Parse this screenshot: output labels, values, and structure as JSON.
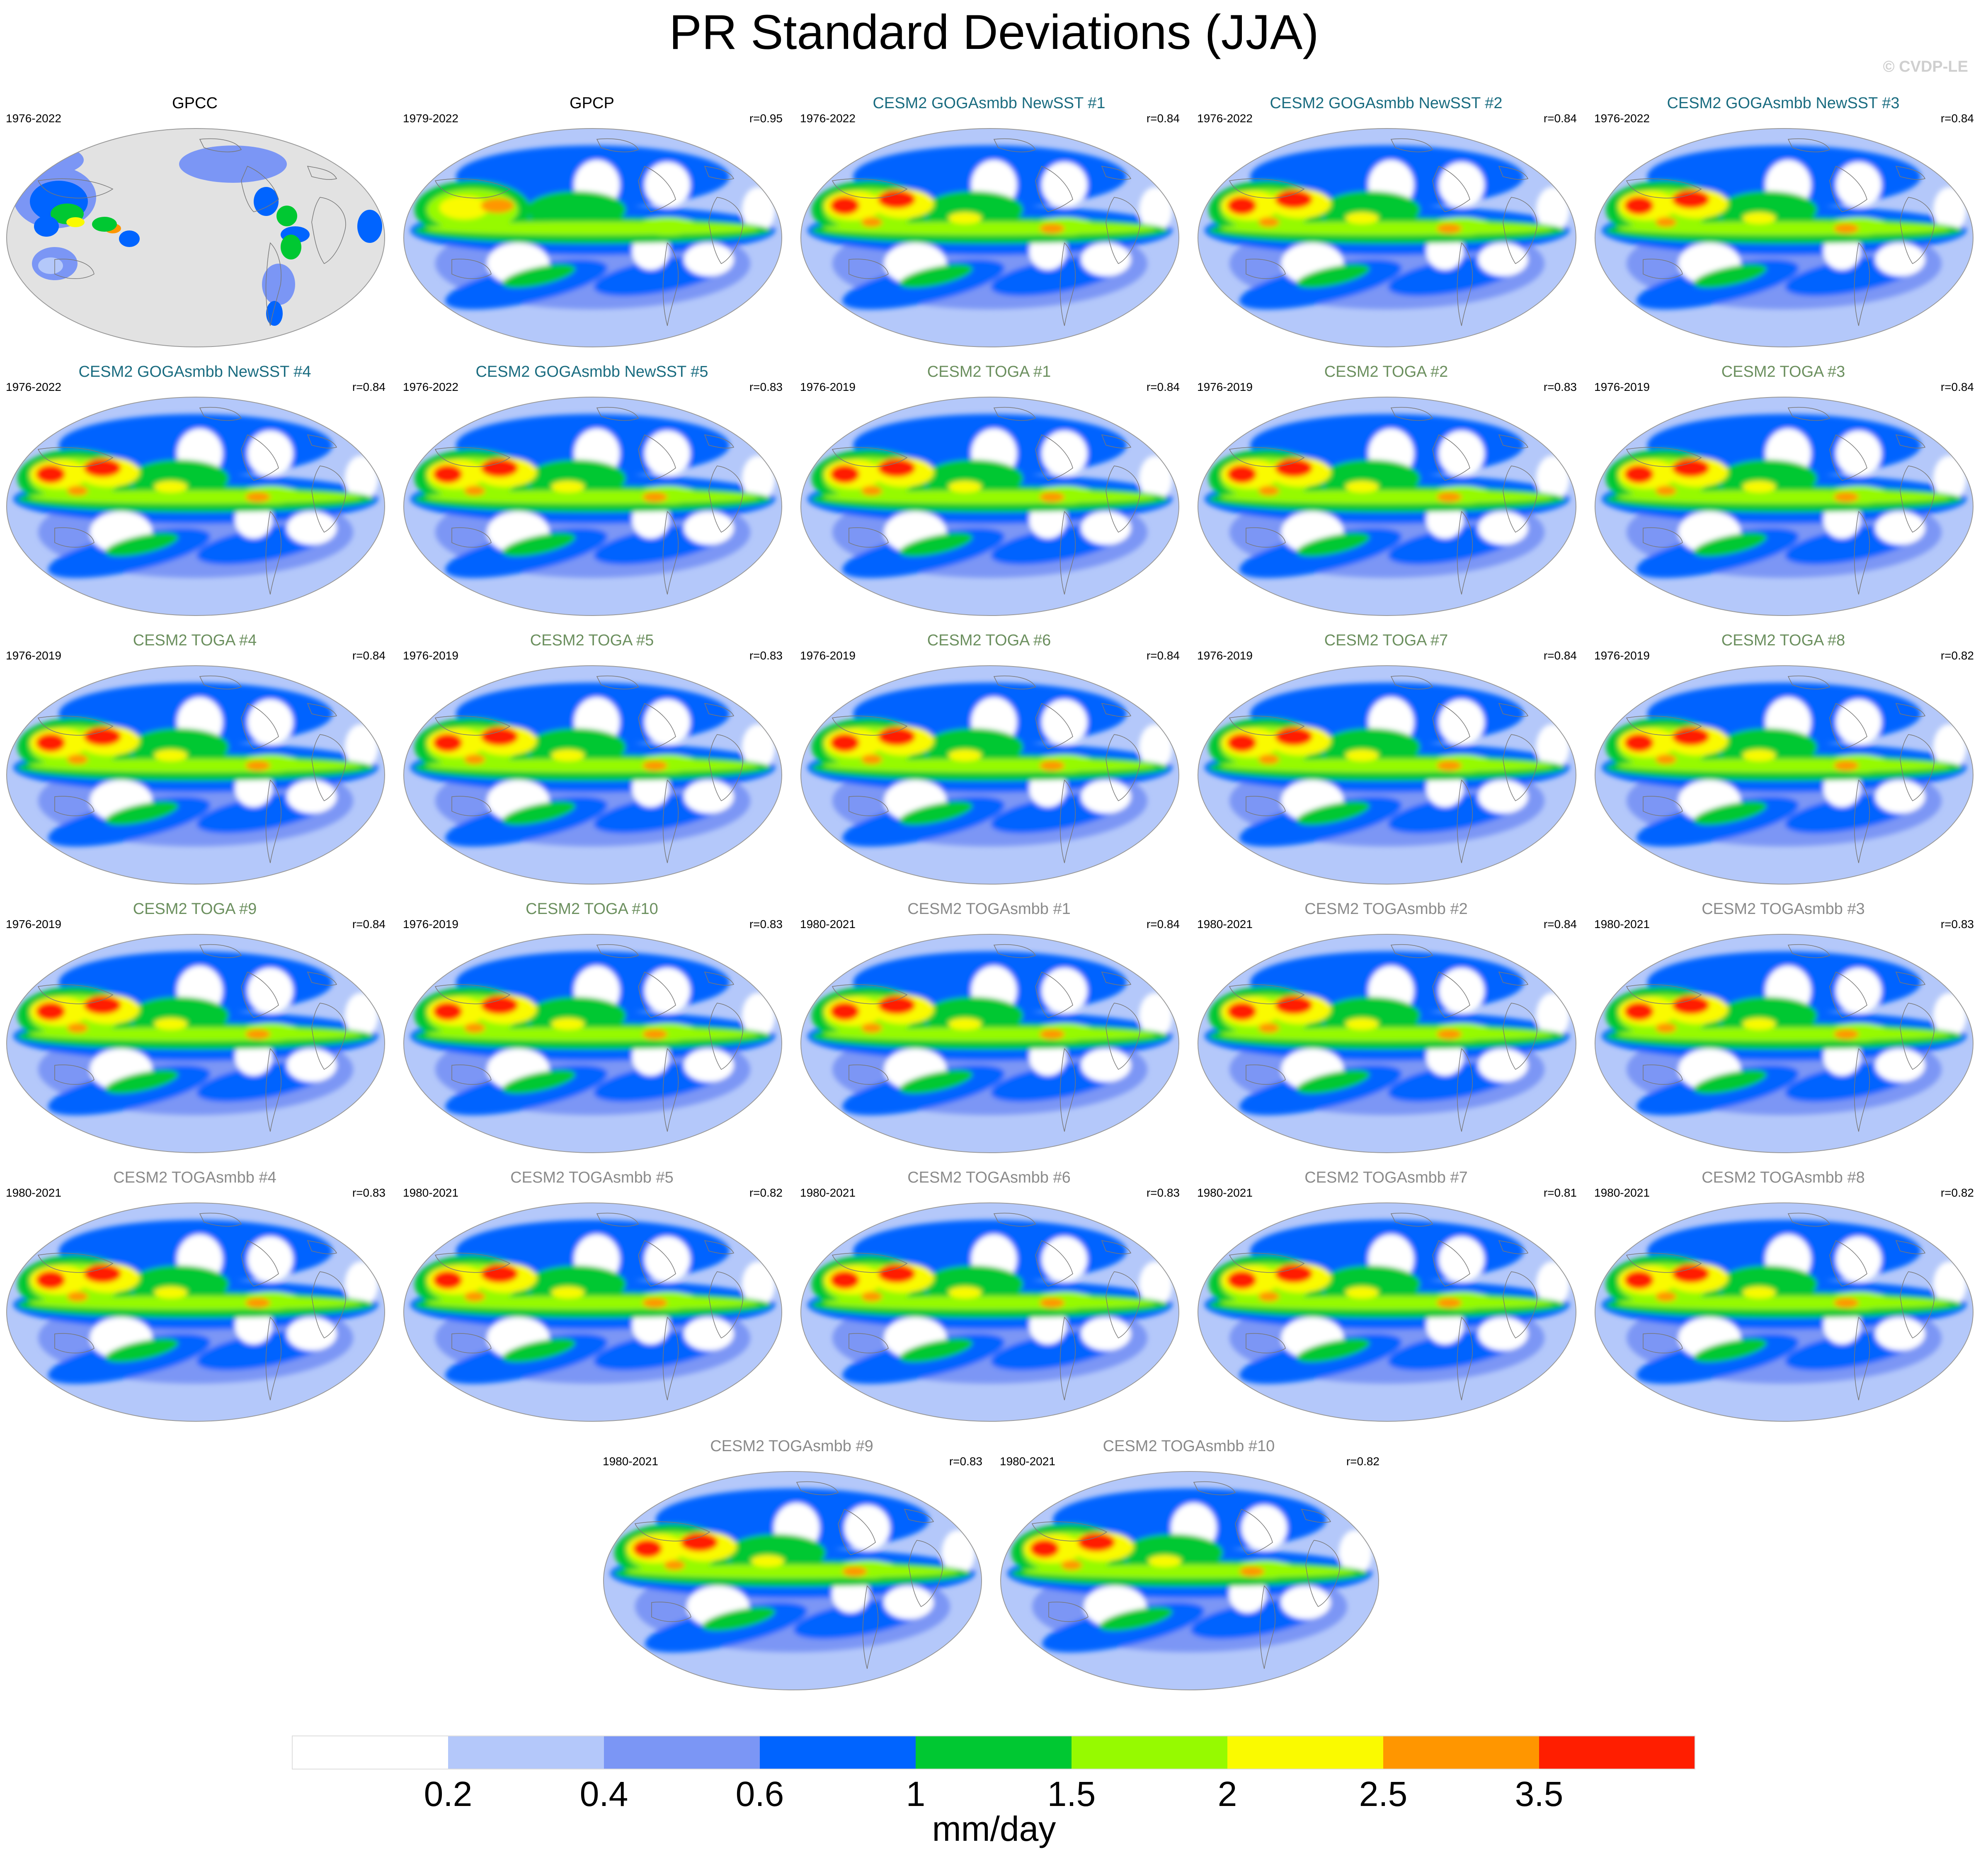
{
  "title": "PR Standard Deviations (JJA)",
  "copyright": "© CVDP-LE",
  "chart_data": {
    "type": "heatmap",
    "title": "PR Standard Deviations (JJA)",
    "variable": "PR standard deviation",
    "season": "JJA",
    "units": "mm/day",
    "levels": [
      "0.2",
      "0.4",
      "0.6",
      "1",
      "1.5",
      "2",
      "2.5",
      "3.5"
    ],
    "colors": [
      "#ffffff",
      "#b4c8fa",
      "#7b96f5",
      "#0064ff",
      "#00c832",
      "#96fa00",
      "#fafa00",
      "#ff9600",
      "#ff1e00"
    ],
    "panels": [
      {
        "name": "GPCC",
        "years": "1976-2022",
        "r": "",
        "kind": "obs_gpcc",
        "title_color": "#000000"
      },
      {
        "name": "GPCP",
        "years": "1979-2022",
        "r": "r=0.95",
        "kind": "obs",
        "title_color": "#000000"
      },
      {
        "name": "CESM2 GOGAsmbb NewSST #1",
        "years": "1976-2022",
        "r": "r=0.84",
        "kind": "model",
        "title_color": "#1a6c80"
      },
      {
        "name": "CESM2 GOGAsmbb NewSST #2",
        "years": "1976-2022",
        "r": "r=0.84",
        "kind": "model",
        "title_color": "#1a6c80"
      },
      {
        "name": "CESM2 GOGAsmbb NewSST #3",
        "years": "1976-2022",
        "r": "r=0.84",
        "kind": "model",
        "title_color": "#1a6c80"
      },
      {
        "name": "CESM2 GOGAsmbb NewSST #4",
        "years": "1976-2022",
        "r": "r=0.84",
        "kind": "model",
        "title_color": "#1a6c80"
      },
      {
        "name": "CESM2 GOGAsmbb NewSST #5",
        "years": "1976-2022",
        "r": "r=0.83",
        "kind": "model",
        "title_color": "#1a6c80"
      },
      {
        "name": "CESM2 TOGA #1",
        "years": "1976-2019",
        "r": "r=0.84",
        "kind": "model",
        "title_color": "#6b8f5e"
      },
      {
        "name": "CESM2 TOGA #2",
        "years": "1976-2019",
        "r": "r=0.83",
        "kind": "model",
        "title_color": "#6b8f5e"
      },
      {
        "name": "CESM2 TOGA #3",
        "years": "1976-2019",
        "r": "r=0.84",
        "kind": "model",
        "title_color": "#6b8f5e"
      },
      {
        "name": "CESM2 TOGA #4",
        "years": "1976-2019",
        "r": "r=0.84",
        "kind": "model",
        "title_color": "#6b8f5e"
      },
      {
        "name": "CESM2 TOGA #5",
        "years": "1976-2019",
        "r": "r=0.83",
        "kind": "model",
        "title_color": "#6b8f5e"
      },
      {
        "name": "CESM2 TOGA #6",
        "years": "1976-2019",
        "r": "r=0.84",
        "kind": "model",
        "title_color": "#6b8f5e"
      },
      {
        "name": "CESM2 TOGA #7",
        "years": "1976-2019",
        "r": "r=0.84",
        "kind": "model",
        "title_color": "#6b8f5e"
      },
      {
        "name": "CESM2 TOGA #8",
        "years": "1976-2019",
        "r": "r=0.82",
        "kind": "model",
        "title_color": "#6b8f5e"
      },
      {
        "name": "CESM2 TOGA #9",
        "years": "1976-2019",
        "r": "r=0.84",
        "kind": "model",
        "title_color": "#6b8f5e"
      },
      {
        "name": "CESM2 TOGA #10",
        "years": "1976-2019",
        "r": "r=0.83",
        "kind": "model",
        "title_color": "#6b8f5e"
      },
      {
        "name": "CESM2 TOGAsmbb #1",
        "years": "1980-2021",
        "r": "r=0.84",
        "kind": "model",
        "title_color": "#8a8a8a"
      },
      {
        "name": "CESM2 TOGAsmbb #2",
        "years": "1980-2021",
        "r": "r=0.84",
        "kind": "model",
        "title_color": "#8a8a8a"
      },
      {
        "name": "CESM2 TOGAsmbb #3",
        "years": "1980-2021",
        "r": "r=0.83",
        "kind": "model",
        "title_color": "#8a8a8a"
      },
      {
        "name": "CESM2 TOGAsmbb #4",
        "years": "1980-2021",
        "r": "r=0.83",
        "kind": "model",
        "title_color": "#8a8a8a"
      },
      {
        "name": "CESM2 TOGAsmbb #5",
        "years": "1980-2021",
        "r": "r=0.82",
        "kind": "model",
        "title_color": "#8a8a8a"
      },
      {
        "name": "CESM2 TOGAsmbb #6",
        "years": "1980-2021",
        "r": "r=0.83",
        "kind": "model",
        "title_color": "#8a8a8a"
      },
      {
        "name": "CESM2 TOGAsmbb #7",
        "years": "1980-2021",
        "r": "r=0.81",
        "kind": "model",
        "title_color": "#8a8a8a"
      },
      {
        "name": "CESM2 TOGAsmbb #8",
        "years": "1980-2021",
        "r": "r=0.82",
        "kind": "model",
        "title_color": "#8a8a8a"
      },
      {
        "name": "CESM2 TOGAsmbb #9",
        "years": "1980-2021",
        "r": "r=0.83",
        "kind": "model",
        "title_color": "#8a8a8a"
      },
      {
        "name": "CESM2 TOGAsmbb #10",
        "years": "1980-2021",
        "r": "r=0.82",
        "kind": "model",
        "title_color": "#8a8a8a"
      }
    ]
  }
}
